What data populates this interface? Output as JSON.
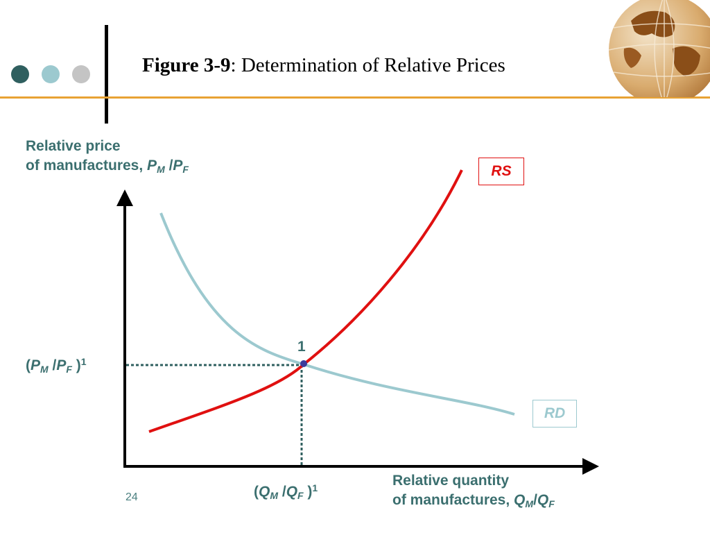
{
  "slide": {
    "title_prefix": "Figure 3-9",
    "title_rest": ": Determination of Relative Prices",
    "page_number": "24"
  },
  "colors": {
    "teal_dark": "#2f5f5f",
    "teal_light": "#9cc9cf",
    "gray": "#c4c4c4",
    "orange_rule": "#e8a233",
    "rs_red": "#e01010",
    "rd_teal": "#9cc9cf",
    "label_teal": "#3b6f6f",
    "point_blue": "#3b3b9c"
  },
  "icons": {
    "decor_dots": [
      "dark-teal-dot-icon",
      "light-teal-dot-icon",
      "gray-dot-icon"
    ],
    "logo": "globe-icon"
  },
  "diagram": {
    "y_axis_label": {
      "line1": "Relative price",
      "line2_text": "of manufactures, ",
      "var_num": "P",
      "sub_num": "M",
      "slash": " /",
      "var_den": "P",
      "sub_den": "F"
    },
    "x_axis_label": {
      "line1": "Relative quantity",
      "line2_text": "of manufactures, ",
      "var_num": "Q",
      "sub_num": "M",
      "slash": "/",
      "var_den": "Q",
      "sub_den": "F"
    },
    "equilibrium_price_label": {
      "open": "(",
      "var_num": "P",
      "sub_num": "M",
      "slash": " /",
      "var_den": "P",
      "sub_den": "F",
      "close": " )",
      "sup": "1"
    },
    "equilibrium_quantity_label": {
      "open": "(",
      "var_num": "Q",
      "sub_num": "M",
      "slash": " /",
      "var_den": "Q",
      "sub_den": "F",
      "close": " )",
      "sup": "1"
    },
    "point_label": "1",
    "curves": {
      "rs_label": "RS",
      "rd_label": "RD"
    }
  }
}
